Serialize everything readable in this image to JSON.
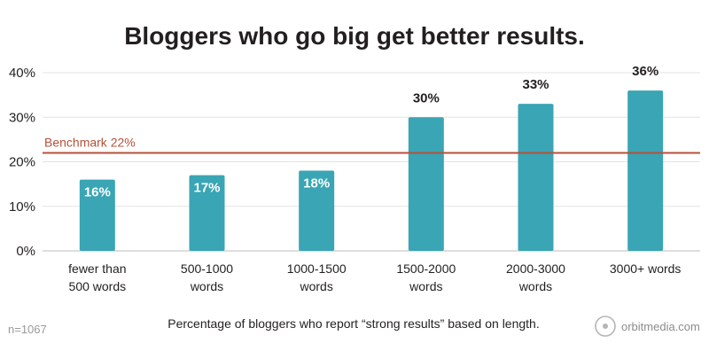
{
  "chart_data": {
    "type": "bar",
    "title": "Bloggers who go big get better results.",
    "categories": [
      [
        "fewer than",
        "500 words"
      ],
      [
        "500-1000",
        "words"
      ],
      [
        "1000-1500",
        "words"
      ],
      [
        "1500-2000",
        "words"
      ],
      [
        "2000-3000",
        "words"
      ],
      [
        "3000+ words"
      ]
    ],
    "values": [
      16,
      17,
      18,
      30,
      33,
      36
    ],
    "value_labels": [
      "16%",
      "17%",
      "18%",
      "30%",
      "33%",
      "36%"
    ],
    "ylim": [
      0,
      40
    ],
    "yticks": [
      0,
      10,
      20,
      30,
      40
    ],
    "ytick_labels": [
      "0%",
      "10%",
      "20%",
      "30%",
      "40%"
    ],
    "grid": true,
    "benchmark": {
      "value": 22,
      "label": "Benchmark 22%",
      "color": "#b5513a"
    },
    "bar_color": "#3aa5b4",
    "caption": "Percentage of bloggers who report “strong results” based on length.",
    "sample_note": "n=1067",
    "brand": "orbitmedia.com"
  }
}
